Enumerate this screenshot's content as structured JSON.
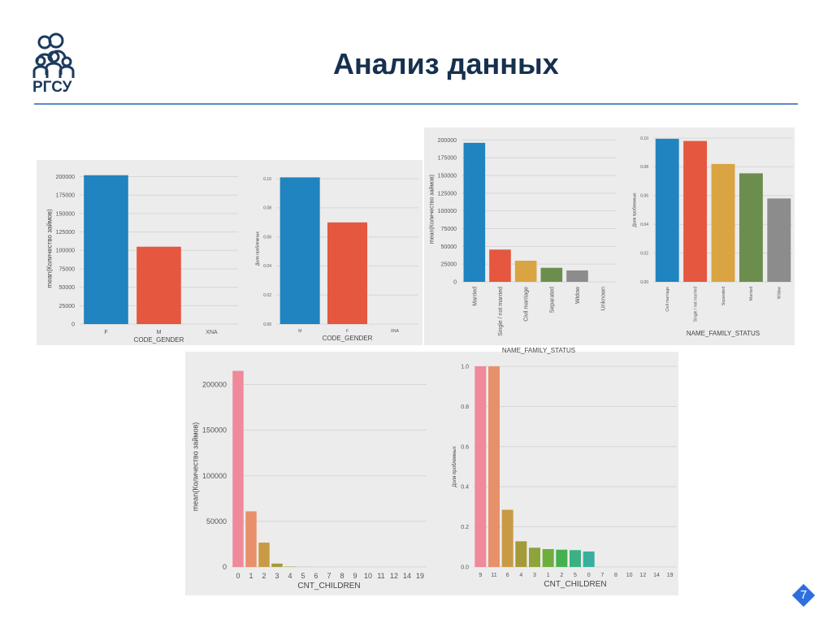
{
  "slide": {
    "title": "Анализ данных",
    "logo_text": "РГСУ",
    "page_number": "7",
    "accent_color": "#5b8ac6",
    "title_color": "#16304f"
  },
  "chart_data": [
    {
      "id": "gender_count",
      "type": "bar",
      "title": "",
      "xlabel": "CODE_GENDER",
      "ylabel": "mean(Количество займов)",
      "categories": [
        "F",
        "M",
        "XNA"
      ],
      "values": [
        202000,
        105000,
        0
      ],
      "colors": [
        "#1f84c0",
        "#e5573f",
        "#d9a441"
      ],
      "ylim": [
        0,
        205000
      ],
      "yticks": [
        0,
        25000,
        50000,
        75000,
        100000,
        125000,
        150000,
        175000,
        200000
      ],
      "grid": true
    },
    {
      "id": "gender_share",
      "type": "bar",
      "title": "",
      "xlabel": "CODE_GENDER",
      "ylabel": "Доля проблемных",
      "categories": [
        "M",
        "F",
        "XNA"
      ],
      "values": [
        0.101,
        0.07,
        0
      ],
      "colors": [
        "#1f84c0",
        "#e5573f",
        "#d9a441"
      ],
      "ylim": [
        0,
        0.104
      ],
      "yticks": [
        0.0,
        0.02,
        0.04,
        0.06,
        0.08,
        0.1
      ],
      "grid": true
    },
    {
      "id": "family_count",
      "type": "bar",
      "title": "",
      "xlabel": "NAME_FAMILY_STATUS",
      "ylabel": "mean(Количество займов)",
      "categories": [
        "Married",
        "Single / not married",
        "Civil marriage",
        "Separated",
        "Widow",
        "Unknown"
      ],
      "values": [
        196000,
        45500,
        29800,
        19800,
        16100,
        0
      ],
      "colors": [
        "#1f84c0",
        "#e5573f",
        "#d9a441",
        "#6b8e4e",
        "#8c8c8c",
        "#8c8c8c"
      ],
      "ylim": [
        0,
        205000
      ],
      "yticks": [
        0,
        25000,
        50000,
        75000,
        100000,
        125000,
        150000,
        175000,
        200000
      ],
      "grid": true
    },
    {
      "id": "family_share",
      "type": "bar",
      "title": "",
      "xlabel": "NAME_FAMILY_STATUS",
      "ylabel": "Доля проблемных",
      "categories": [
        "Civil marriage",
        "Single / not married",
        "Separated",
        "Married",
        "Widow"
      ],
      "values": [
        0.0995,
        0.098,
        0.082,
        0.0755,
        0.058
      ],
      "colors": [
        "#1f84c0",
        "#e5573f",
        "#d9a441",
        "#6b8e4e",
        "#8c8c8c"
      ],
      "ylim": [
        0,
        0.1
      ],
      "yticks": [
        0.0,
        0.02,
        0.04,
        0.06,
        0.08,
        0.1
      ],
      "grid": true
    },
    {
      "id": "children_count",
      "type": "bar",
      "title": "",
      "xlabel": "CNT_CHILDREN",
      "ylabel": "mean(Количество займов)",
      "categories": [
        "0",
        "1",
        "2",
        "3",
        "4",
        "5",
        "6",
        "7",
        "8",
        "9",
        "10",
        "11",
        "12",
        "14",
        "19"
      ],
      "values": [
        215000,
        61000,
        26700,
        3700,
        430,
        84,
        21,
        7,
        2,
        2,
        2,
        1,
        2,
        3,
        2
      ],
      "colors": [
        "#f0899a",
        "#e8906a",
        "#c99a45",
        "#a59a3a",
        "#8ea43a",
        "#6fae3d",
        "#45b04f",
        "#3cb083",
        "#3aae9e",
        "#3ca9b4",
        "#3fa3c7",
        "#6b9ae0",
        "#9c8ee8",
        "#c883e4",
        "#e47ecf"
      ],
      "ylim": [
        0,
        220000
      ],
      "yticks": [
        0,
        50000,
        100000,
        150000,
        200000
      ],
      "grid": true
    },
    {
      "id": "children_share",
      "type": "bar",
      "title": "",
      "xlabel": "CNT_CHILDREN",
      "ylabel": "Доля проблемных",
      "categories": [
        "9",
        "11",
        "6",
        "4",
        "3",
        "1",
        "2",
        "5",
        "0",
        "7",
        "8",
        "10",
        "12",
        "14",
        "19"
      ],
      "values": [
        1.0,
        1.0,
        0.285,
        0.128,
        0.096,
        0.089,
        0.086,
        0.084,
        0.077,
        0,
        0,
        0,
        0,
        0,
        0
      ],
      "colors": [
        "#f0899a",
        "#e8906a",
        "#c99a45",
        "#a59a3a",
        "#8ea43a",
        "#6fae3d",
        "#45b04f",
        "#3cb083",
        "#3aae9e",
        "#3ca9b4",
        "#3fa3c7",
        "#6b9ae0",
        "#9c8ee8",
        "#c883e4",
        "#e47ecf"
      ],
      "ylim": [
        0,
        1.0
      ],
      "yticks": [
        0.0,
        0.2,
        0.4,
        0.6,
        0.8,
        1.0
      ],
      "grid": true
    }
  ]
}
